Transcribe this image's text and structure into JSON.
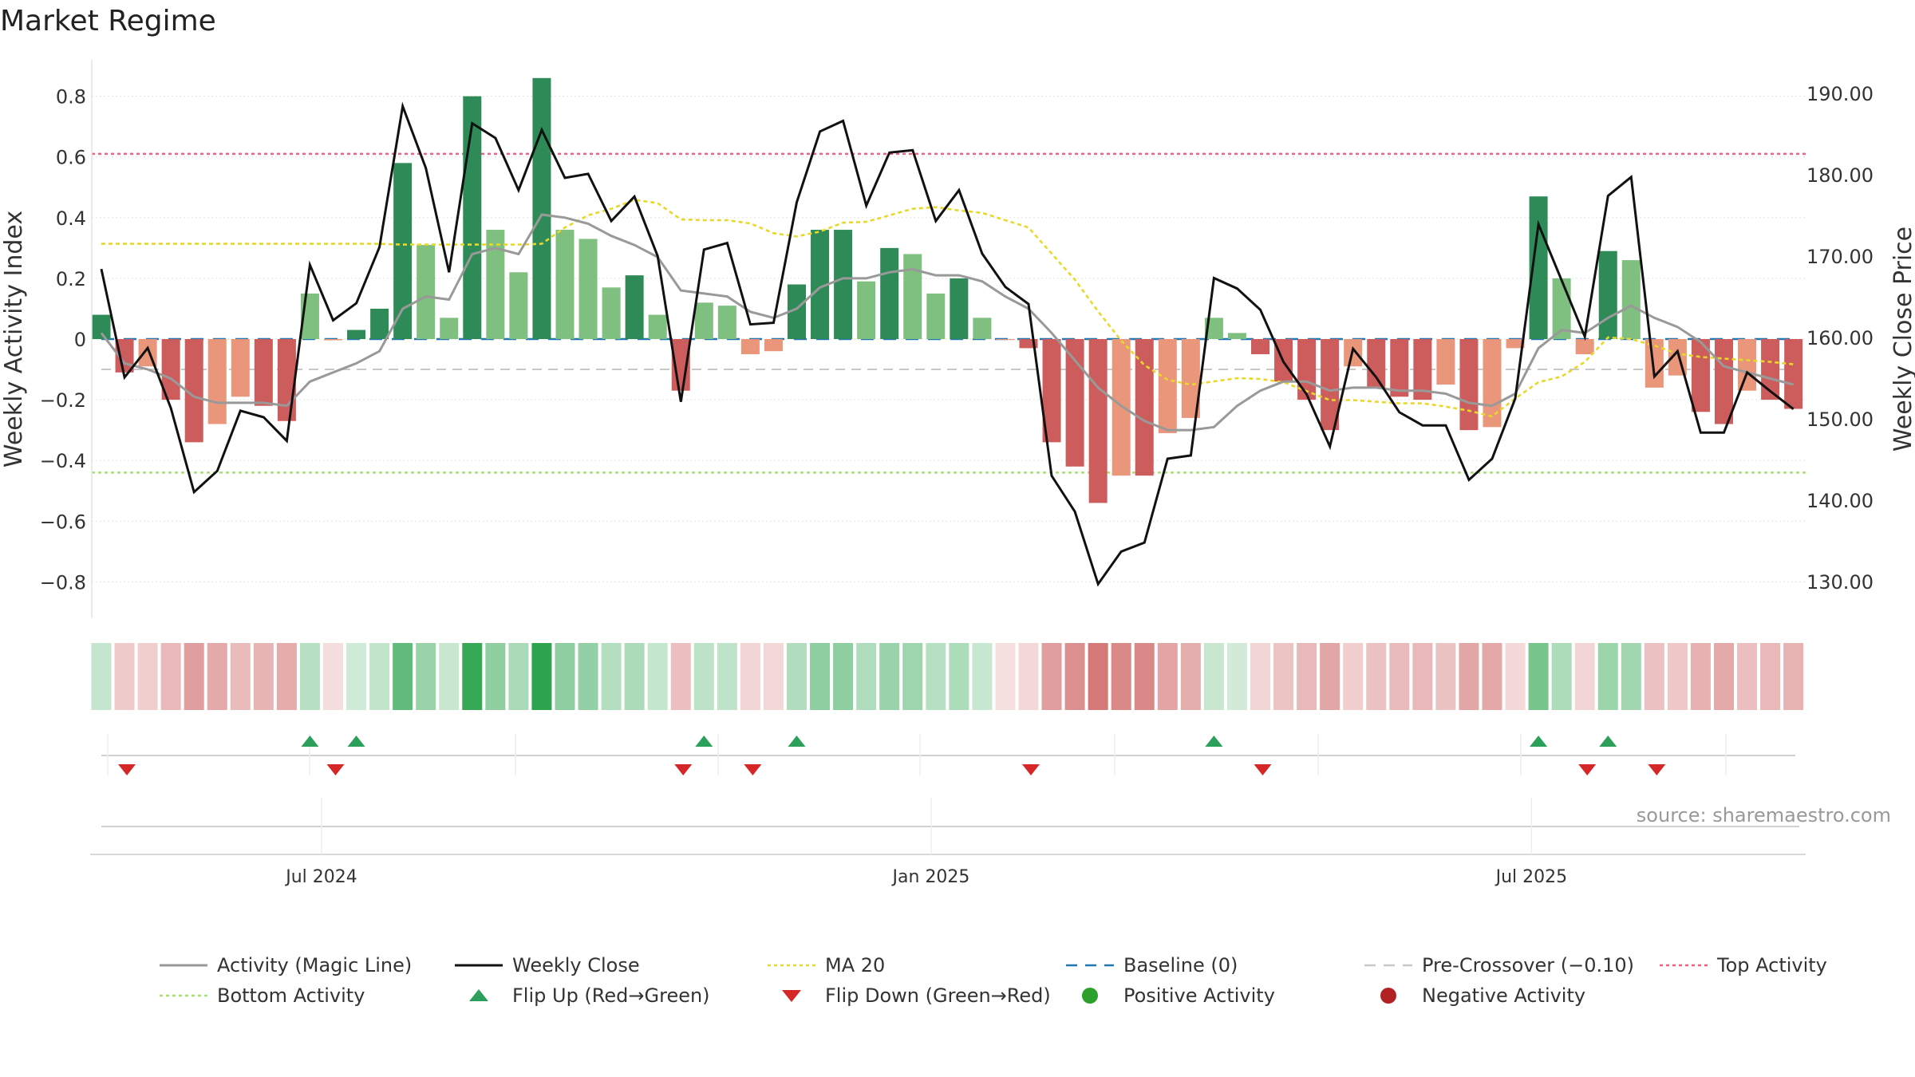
{
  "page_title": "Market Regime",
  "source": "source: sharemaestro.com",
  "colors": {
    "pos_strong": "#2e8b57",
    "pos_light": "#7fbf7f",
    "neg_strong": "#cd5c5c",
    "neg_light": "#e9967a",
    "magic_line": "#999999",
    "close_line": "#111111",
    "ma20": "#e8d82a",
    "baseline": "#1f77b4",
    "pre_crossover": "#c8c8c8",
    "top_activity": "#f06080",
    "bottom_activity": "#a8e070",
    "flip_up": "#2ca05a",
    "flip_down": "#d62728",
    "positive_dot": "#2ca02c",
    "negative_dot": "#b22222"
  },
  "legend": [
    {
      "label": "Activity (Magic Line)",
      "symbol": "solid-gray"
    },
    {
      "label": "Weekly Close",
      "symbol": "solid-black"
    },
    {
      "label": "MA 20",
      "symbol": "dotted-yellow"
    },
    {
      "label": "Baseline (0)",
      "symbol": "dashed-blue"
    },
    {
      "label": "Pre-Crossover (−0.10)",
      "symbol": "dashed-gray"
    },
    {
      "label": "Top Activity",
      "symbol": "dotted-pink"
    },
    {
      "label": "Bottom Activity",
      "symbol": "dotted-green"
    },
    {
      "label": "Flip Up (Red→Green)",
      "symbol": "triangle-up"
    },
    {
      "label": "Flip Down (Green→Red)",
      "symbol": "triangle-down"
    },
    {
      "label": "Positive Activity",
      "symbol": "dot-green"
    },
    {
      "label": "Negative Activity",
      "symbol": "dot-red"
    }
  ],
  "chart_data": {
    "type": "bar",
    "title": "Market Regime",
    "ylabel": "Weekly Activity Index",
    "y2label": "Weekly Close Price",
    "ylim": [
      -0.92,
      0.92
    ],
    "y2lim": [
      125.5,
      194.1
    ],
    "yticks": [
      "0.8",
      "0.6",
      "0.4",
      "0.2",
      "0",
      "−0.2",
      "−0.4",
      "−0.6",
      "−0.8"
    ],
    "y2ticks": [
      "190.00",
      "180.00",
      "170.00",
      "160.00",
      "150.00",
      "140.00",
      "130.00"
    ],
    "xticks": [
      {
        "label": "Jul 2024",
        "week": 9.5
      },
      {
        "label": "Jan 2025",
        "week": 35.8
      },
      {
        "label": "Jul 2025",
        "week": 61.7
      }
    ],
    "reference_lines": {
      "baseline": 0,
      "pre_crossover": -0.1,
      "top_activity": 0.61,
      "bottom_activity": -0.44
    },
    "weeks": 74,
    "activity": [
      0.08,
      -0.11,
      -0.09,
      -0.2,
      -0.34,
      -0.28,
      -0.19,
      -0.22,
      -0.27,
      0.15,
      -0.004,
      0.03,
      0.1,
      0.58,
      0.31,
      0.07,
      0.8,
      0.36,
      0.22,
      0.86,
      0.36,
      0.33,
      0.17,
      0.21,
      0.08,
      -0.17,
      0.12,
      0.11,
      -0.05,
      -0.04,
      0.18,
      0.36,
      0.36,
      0.19,
      0.3,
      0.28,
      0.15,
      0.2,
      0.07,
      -0.003,
      -0.03,
      -0.34,
      -0.42,
      -0.54,
      -0.45,
      -0.45,
      -0.31,
      -0.26,
      0.07,
      0.02,
      -0.05,
      -0.14,
      -0.2,
      -0.3,
      -0.09,
      -0.16,
      -0.19,
      -0.2,
      -0.15,
      -0.3,
      -0.29,
      -0.03,
      0.47,
      0.2,
      -0.05,
      0.29,
      0.26,
      -0.16,
      -0.12,
      -0.24,
      -0.28,
      -0.17,
      -0.2,
      -0.23
    ],
    "magic_line": [
      0.02,
      -0.08,
      -0.1,
      -0.13,
      -0.19,
      -0.21,
      -0.21,
      -0.21,
      -0.22,
      -0.14,
      -0.11,
      -0.08,
      -0.04,
      0.1,
      0.14,
      0.13,
      0.28,
      0.3,
      0.28,
      0.41,
      0.4,
      0.38,
      0.34,
      0.31,
      0.27,
      0.16,
      0.15,
      0.14,
      0.09,
      0.07,
      0.1,
      0.17,
      0.2,
      0.2,
      0.22,
      0.23,
      0.21,
      0.21,
      0.19,
      0.14,
      0.1,
      0.02,
      -0.07,
      -0.16,
      -0.22,
      -0.27,
      -0.3,
      -0.3,
      -0.29,
      -0.22,
      -0.17,
      -0.14,
      -0.14,
      -0.17,
      -0.16,
      -0.16,
      -0.17,
      -0.17,
      -0.18,
      -0.21,
      -0.22,
      -0.18,
      -0.03,
      0.03,
      0.02,
      0.07,
      0.11,
      0.07,
      0.04,
      -0.01,
      -0.09,
      -0.11,
      -0.13,
      -0.15
    ],
    "weekly_close": [
      168.4,
      155.1,
      158.7,
      151.3,
      141.0,
      143.6,
      151.0,
      150.2,
      147.3,
      168.9,
      162.1,
      164.2,
      171.1,
      188.4,
      180.8,
      168.0,
      186.3,
      184.5,
      178.1,
      185.5,
      179.6,
      180.1,
      174.3,
      177.3,
      170.0,
      152.1,
      170.8,
      171.6,
      161.6,
      161.8,
      176.6,
      185.3,
      186.6,
      176.2,
      182.7,
      183.0,
      174.3,
      178.1,
      170.3,
      166.2,
      164.1,
      143.0,
      138.6,
      129.7,
      133.7,
      134.8,
      145.1,
      145.5,
      167.3,
      166.0,
      163.4,
      157.0,
      153.0,
      146.6,
      158.6,
      155.1,
      150.8,
      149.2,
      149.2,
      142.5,
      145.1,
      152.5,
      173.9,
      167.0,
      160.1,
      177.4,
      179.7,
      155.2,
      158.3,
      148.3,
      148.3,
      155.7,
      153.4,
      151.2
    ],
    "ma20": [
      171.5,
      171.5,
      171.5,
      171.5,
      171.5,
      171.5,
      171.5,
      171.5,
      171.5,
      171.5,
      171.5,
      171.5,
      171.5,
      171.4,
      171.4,
      171.4,
      171.4,
      171.4,
      171.4,
      171.5,
      173.5,
      175.0,
      175.8,
      176.9,
      176.5,
      174.5,
      174.4,
      174.4,
      174.0,
      172.8,
      172.4,
      173.0,
      174.1,
      174.2,
      175.0,
      175.8,
      176.0,
      175.6,
      175.3,
      174.4,
      173.5,
      170.3,
      167.1,
      163.2,
      159.6,
      156.6,
      154.8,
      154.2,
      154.6,
      155.0,
      154.9,
      154.5,
      153.4,
      152.3,
      152.3,
      152.1,
      151.9,
      151.9,
      151.5,
      151.0,
      150.3,
      152.5,
      154.5,
      155.2,
      157.0,
      160.0,
      159.8,
      159.0,
      158.0,
      157.6,
      157.4,
      157.2,
      157.0,
      156.7
    ],
    "flips_up": [
      9,
      11,
      26,
      30,
      48,
      62,
      65
    ],
    "flips_down": [
      1,
      10,
      25,
      28,
      40,
      50,
      64,
      67
    ]
  }
}
